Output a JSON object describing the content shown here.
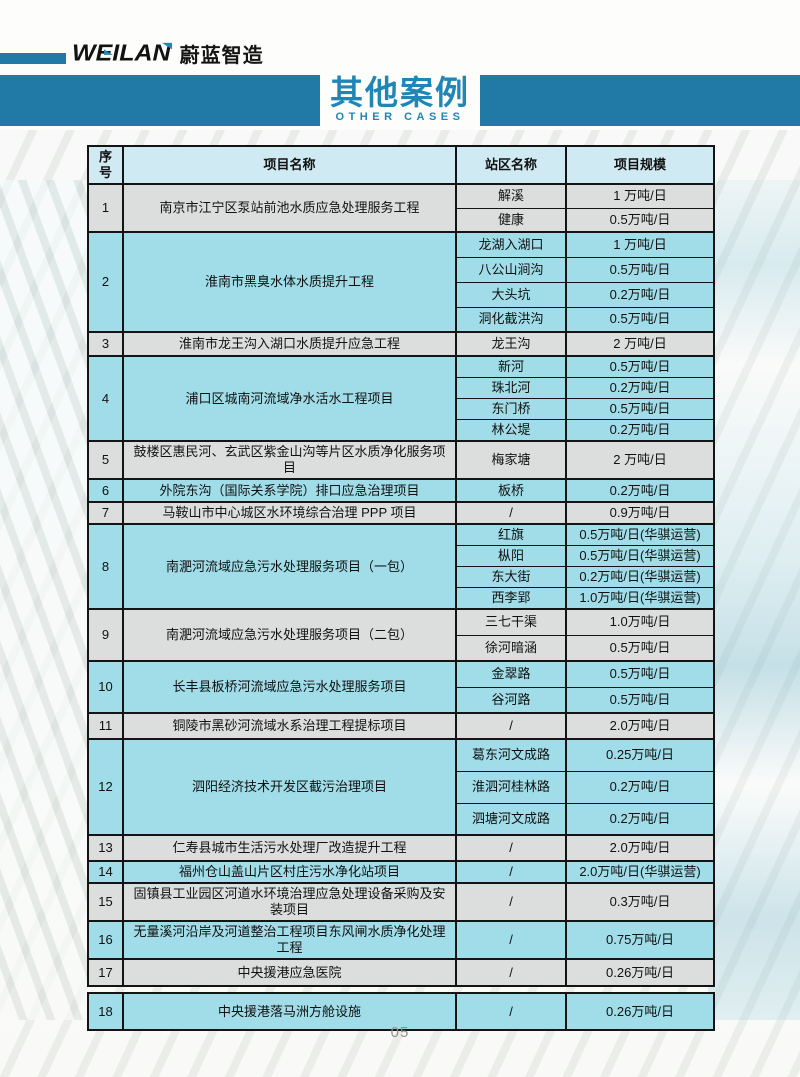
{
  "logo": {
    "wordmark": "WEILAN",
    "chinese": "蔚蓝智造"
  },
  "banner": {
    "title_zh": "其他案例",
    "title_en": "OTHER CASES"
  },
  "page_number": "05",
  "colors": {
    "accent_blue": "#2179a6",
    "title_blue": "#1f86b5",
    "header_bg": "#cfeaf3",
    "row_gray": "#dcdedd",
    "row_cyan": "#a0dde8",
    "border": "#141414"
  },
  "table": {
    "headers": [
      "序号",
      "项目名称",
      "站区名称",
      "项目规模"
    ],
    "rows": [
      {
        "no": "1",
        "project": "南京市江宁区泵站前池水质应急处理服务工程",
        "stations": [
          {
            "name": "解溪",
            "scale": "1 万吨/日"
          },
          {
            "name": "健康",
            "scale": "0.5万吨/日"
          }
        ]
      },
      {
        "no": "2",
        "project": "淮南市黑臭水体水质提升工程",
        "stations": [
          {
            "name": "龙湖入湖口",
            "scale": "1 万吨/日"
          },
          {
            "name": "八公山涧沟",
            "scale": "0.5万吨/日"
          },
          {
            "name": "大头坑",
            "scale": "0.2万吨/日"
          },
          {
            "name": "洞化截洪沟",
            "scale": "0.5万吨/日"
          }
        ]
      },
      {
        "no": "3",
        "project": "淮南市龙王沟入湖口水质提升应急工程",
        "stations": [
          {
            "name": "龙王沟",
            "scale": "2 万吨/日"
          }
        ]
      },
      {
        "no": "4",
        "project": "浦口区城南河流域净水活水工程项目",
        "stations": [
          {
            "name": "新河",
            "scale": "0.5万吨/日"
          },
          {
            "name": "珠北河",
            "scale": "0.2万吨/日"
          },
          {
            "name": "东门桥",
            "scale": "0.5万吨/日"
          },
          {
            "name": "林公堤",
            "scale": "0.2万吨/日"
          }
        ]
      },
      {
        "no": "5",
        "project": "鼓楼区惠民河、玄武区紫金山沟等片区水质净化服务项目",
        "stations": [
          {
            "name": "梅家塘",
            "scale": "2 万吨/日"
          }
        ]
      },
      {
        "no": "6",
        "project": "外院东沟（国际关系学院）排口应急治理项目",
        "stations": [
          {
            "name": "板桥",
            "scale": "0.2万吨/日"
          }
        ]
      },
      {
        "no": "7",
        "project": "马鞍山市中心城区水环境综合治理 PPP 项目",
        "stations": [
          {
            "name": "/",
            "scale": "0.9万吨/日"
          }
        ]
      },
      {
        "no": "8",
        "project": "南淝河流域应急污水处理服务项目（一包）",
        "stations": [
          {
            "name": "红旗",
            "scale": "0.5万吨/日(华骐运营)"
          },
          {
            "name": "枞阳",
            "scale": "0.5万吨/日(华骐运营)"
          },
          {
            "name": "东大街",
            "scale": "0.2万吨/日(华骐运营)"
          },
          {
            "name": "西李郢",
            "scale": "1.0万吨/日(华骐运营)"
          }
        ]
      },
      {
        "no": "9",
        "project": "南淝河流域应急污水处理服务项目（二包）",
        "stations": [
          {
            "name": "三七干渠",
            "scale": "1.0万吨/日"
          },
          {
            "name": "徐河暗涵",
            "scale": "0.5万吨/日"
          }
        ]
      },
      {
        "no": "10",
        "project": "长丰县板桥河流域应急污水处理服务项目",
        "stations": [
          {
            "name": "金翠路",
            "scale": "0.5万吨/日"
          },
          {
            "name": "谷河路",
            "scale": "0.5万吨/日"
          }
        ]
      },
      {
        "no": "11",
        "project": "铜陵市黑砂河流域水系治理工程提标项目",
        "stations": [
          {
            "name": "/",
            "scale": "2.0万吨/日"
          }
        ]
      },
      {
        "no": "12",
        "project": "泗阳经济技术开发区截污治理项目",
        "stations": [
          {
            "name": "葛东河文成路",
            "scale": "0.25万吨/日"
          },
          {
            "name": "淮泗河桂林路",
            "scale": "0.2万吨/日"
          },
          {
            "name": "泗塘河文成路",
            "scale": "0.2万吨/日"
          }
        ]
      },
      {
        "no": "13",
        "project": "仁寿县城市生活污水处理厂改造提升工程",
        "stations": [
          {
            "name": "/",
            "scale": "2.0万吨/日"
          }
        ]
      },
      {
        "no": "14",
        "project": "福州仓山盖山片区村庄污水净化站项目",
        "stations": [
          {
            "name": "/",
            "scale": "2.0万吨/日(华骐运营)"
          }
        ]
      },
      {
        "no": "15",
        "project": "固镇县工业园区河道水环境治理应急处理设备采购及安装项目",
        "stations": [
          {
            "name": "/",
            "scale": "0.3万吨/日"
          }
        ]
      },
      {
        "no": "16",
        "project": "无量溪河沿岸及河道整治工程项目东风闸水质净化处理工程",
        "stations": [
          {
            "name": "/",
            "scale": "0.75万吨/日"
          }
        ]
      },
      {
        "no": "17",
        "project": "中央援港应急医院",
        "stations": [
          {
            "name": "/",
            "scale": "0.26万吨/日"
          }
        ]
      },
      {
        "no": "18",
        "project": "中央援港落马洲方舱设施",
        "stations": [
          {
            "name": "/",
            "scale": "0.26万吨/日"
          }
        ]
      }
    ]
  }
}
